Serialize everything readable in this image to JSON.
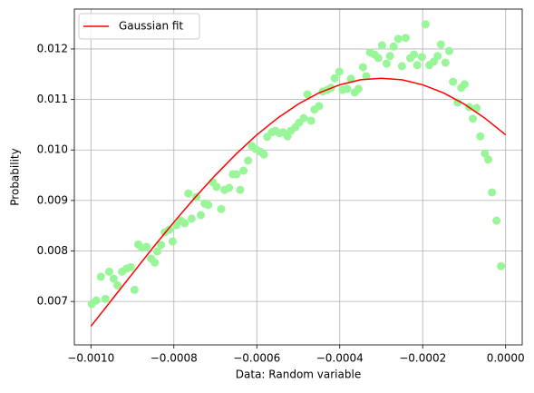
{
  "chart_data": {
    "type": "scatter",
    "xlabel": "Data: Random variable",
    "ylabel": "Probability",
    "xlim": [
      -0.00104,
      4e-05
    ],
    "ylim": [
      0.00614,
      0.01279
    ],
    "xticks": [
      {
        "value": -0.001,
        "label": "−0.0010"
      },
      {
        "value": -0.0008,
        "label": "−0.0008"
      },
      {
        "value": -0.0006,
        "label": "−0.0006"
      },
      {
        "value": -0.0004,
        "label": "−0.0004"
      },
      {
        "value": -0.0002,
        "label": "−0.0002"
      },
      {
        "value": 0,
        "label": "0.0000"
      }
    ],
    "yticks": [
      0.007,
      0.008,
      0.009,
      {
        "value": 0.01,
        "label": "0.010"
      },
      0.011,
      0.012
    ],
    "grid": true,
    "legend": "upper left",
    "series": [
      {
        "type": "scatter",
        "color": "#98f598",
        "x": [
          -0.000998,
          -0.000987,
          -0.000976,
          -0.000965,
          -0.000956,
          -0.000945,
          -0.000936,
          -0.000925,
          -0.000914,
          -0.000904,
          -0.000895,
          -0.000886,
          -0.000877,
          -0.000866,
          -0.000855,
          -0.000846,
          -0.00084,
          -0.000831,
          -0.000822,
          -0.000811,
          -0.000803,
          -0.000794,
          -0.000783,
          -0.000774,
          -0.000765,
          -0.000757,
          -0.000746,
          -0.000735,
          -0.000726,
          -0.000717,
          -0.000706,
          -0.000697,
          -0.000686,
          -0.000678,
          -0.000667,
          -0.000658,
          -0.000649,
          -0.00064,
          -0.000632,
          -0.000621,
          -0.000612,
          -0.000603,
          -0.000592,
          -0.000583,
          -0.000575,
          -0.000564,
          -0.000555,
          -0.000546,
          -0.000537,
          -0.000526,
          -0.000518,
          -0.000507,
          -0.000498,
          -0.000487,
          -0.000478,
          -0.000469,
          -0.000461,
          -0.00045,
          -0.000441,
          -0.00043,
          -0.000421,
          -0.000412,
          -0.000401,
          -0.000393,
          -0.000382,
          -0.000373,
          -0.000364,
          -0.000355,
          -0.000344,
          -0.000336,
          -0.000327,
          -0.000316,
          -0.000307,
          -0.000298,
          -0.000287,
          -0.000279,
          -0.00027,
          -0.000259,
          -0.00025,
          -0.000241,
          -0.00023,
          -0.000221,
          -0.000213,
          -0.000202,
          -0.000193,
          -0.000184,
          -0.000173,
          -0.000164,
          -0.000156,
          -0.000145,
          -0.000136,
          -0.000127,
          -0.000116,
          -0.000107,
          -9.9e-05,
          -8.8e-05,
          -7.9e-05,
          -7e-05,
          -6.1e-05,
          -5e-05,
          -4.2e-05,
          -3.3e-05,
          -2.2e-05,
          -1.1e-05
        ],
        "values": [
          0.00695,
          0.00702,
          0.00749,
          0.00705,
          0.00759,
          0.00745,
          0.00732,
          0.00759,
          0.00765,
          0.00768,
          0.00723,
          0.00813,
          0.00806,
          0.00808,
          0.00785,
          0.00777,
          0.00799,
          0.00812,
          0.00837,
          0.00842,
          0.00819,
          0.00851,
          0.0086,
          0.00855,
          0.00914,
          0.00864,
          0.00907,
          0.00871,
          0.00894,
          0.00891,
          0.00936,
          0.00927,
          0.00883,
          0.00921,
          0.00925,
          0.00952,
          0.00952,
          0.00921,
          0.00959,
          0.00979,
          0.01008,
          0.01002,
          0.00997,
          0.00991,
          0.01026,
          0.01035,
          0.01038,
          0.01033,
          0.01035,
          0.01027,
          0.01038,
          0.01045,
          0.01054,
          0.01063,
          0.0111,
          0.01058,
          0.0108,
          0.01087,
          0.01116,
          0.01119,
          0.01123,
          0.01142,
          0.01155,
          0.01119,
          0.01121,
          0.01141,
          0.01114,
          0.01121,
          0.01164,
          0.01146,
          0.01193,
          0.01189,
          0.01182,
          0.01207,
          0.01171,
          0.01186,
          0.01205,
          0.0122,
          0.01166,
          0.01222,
          0.01182,
          0.01189,
          0.01168,
          0.01184,
          0.01249,
          0.01168,
          0.01175,
          0.01186,
          0.01209,
          0.01173,
          0.01196,
          0.01135,
          0.01094,
          0.01123,
          0.0113,
          0.01085,
          0.01062,
          0.01083,
          0.01027,
          0.00993,
          0.00981,
          0.00916,
          0.0086,
          0.0077
        ]
      },
      {
        "type": "line",
        "name": "Gaussian fit",
        "color": "#ff0000",
        "x": [
          -0.001,
          -0.00095,
          -0.0009,
          -0.00085,
          -0.0008,
          -0.00075,
          -0.0007,
          -0.00065,
          -0.0006,
          -0.00055,
          -0.0005,
          -0.00045,
          -0.0004,
          -0.00035,
          -0.0003,
          -0.00025,
          -0.0002,
          -0.00015,
          -0.0001,
          -5e-05,
          0
        ],
        "values": [
          0.00651,
          0.00703,
          0.00755,
          0.00807,
          0.00857,
          0.00905,
          0.0095,
          0.00992,
          0.0103,
          0.01063,
          0.01091,
          0.01113,
          0.01129,
          0.01139,
          0.01142,
          0.01139,
          0.01129,
          0.01113,
          0.01091,
          0.01063,
          0.0103
        ]
      }
    ]
  }
}
